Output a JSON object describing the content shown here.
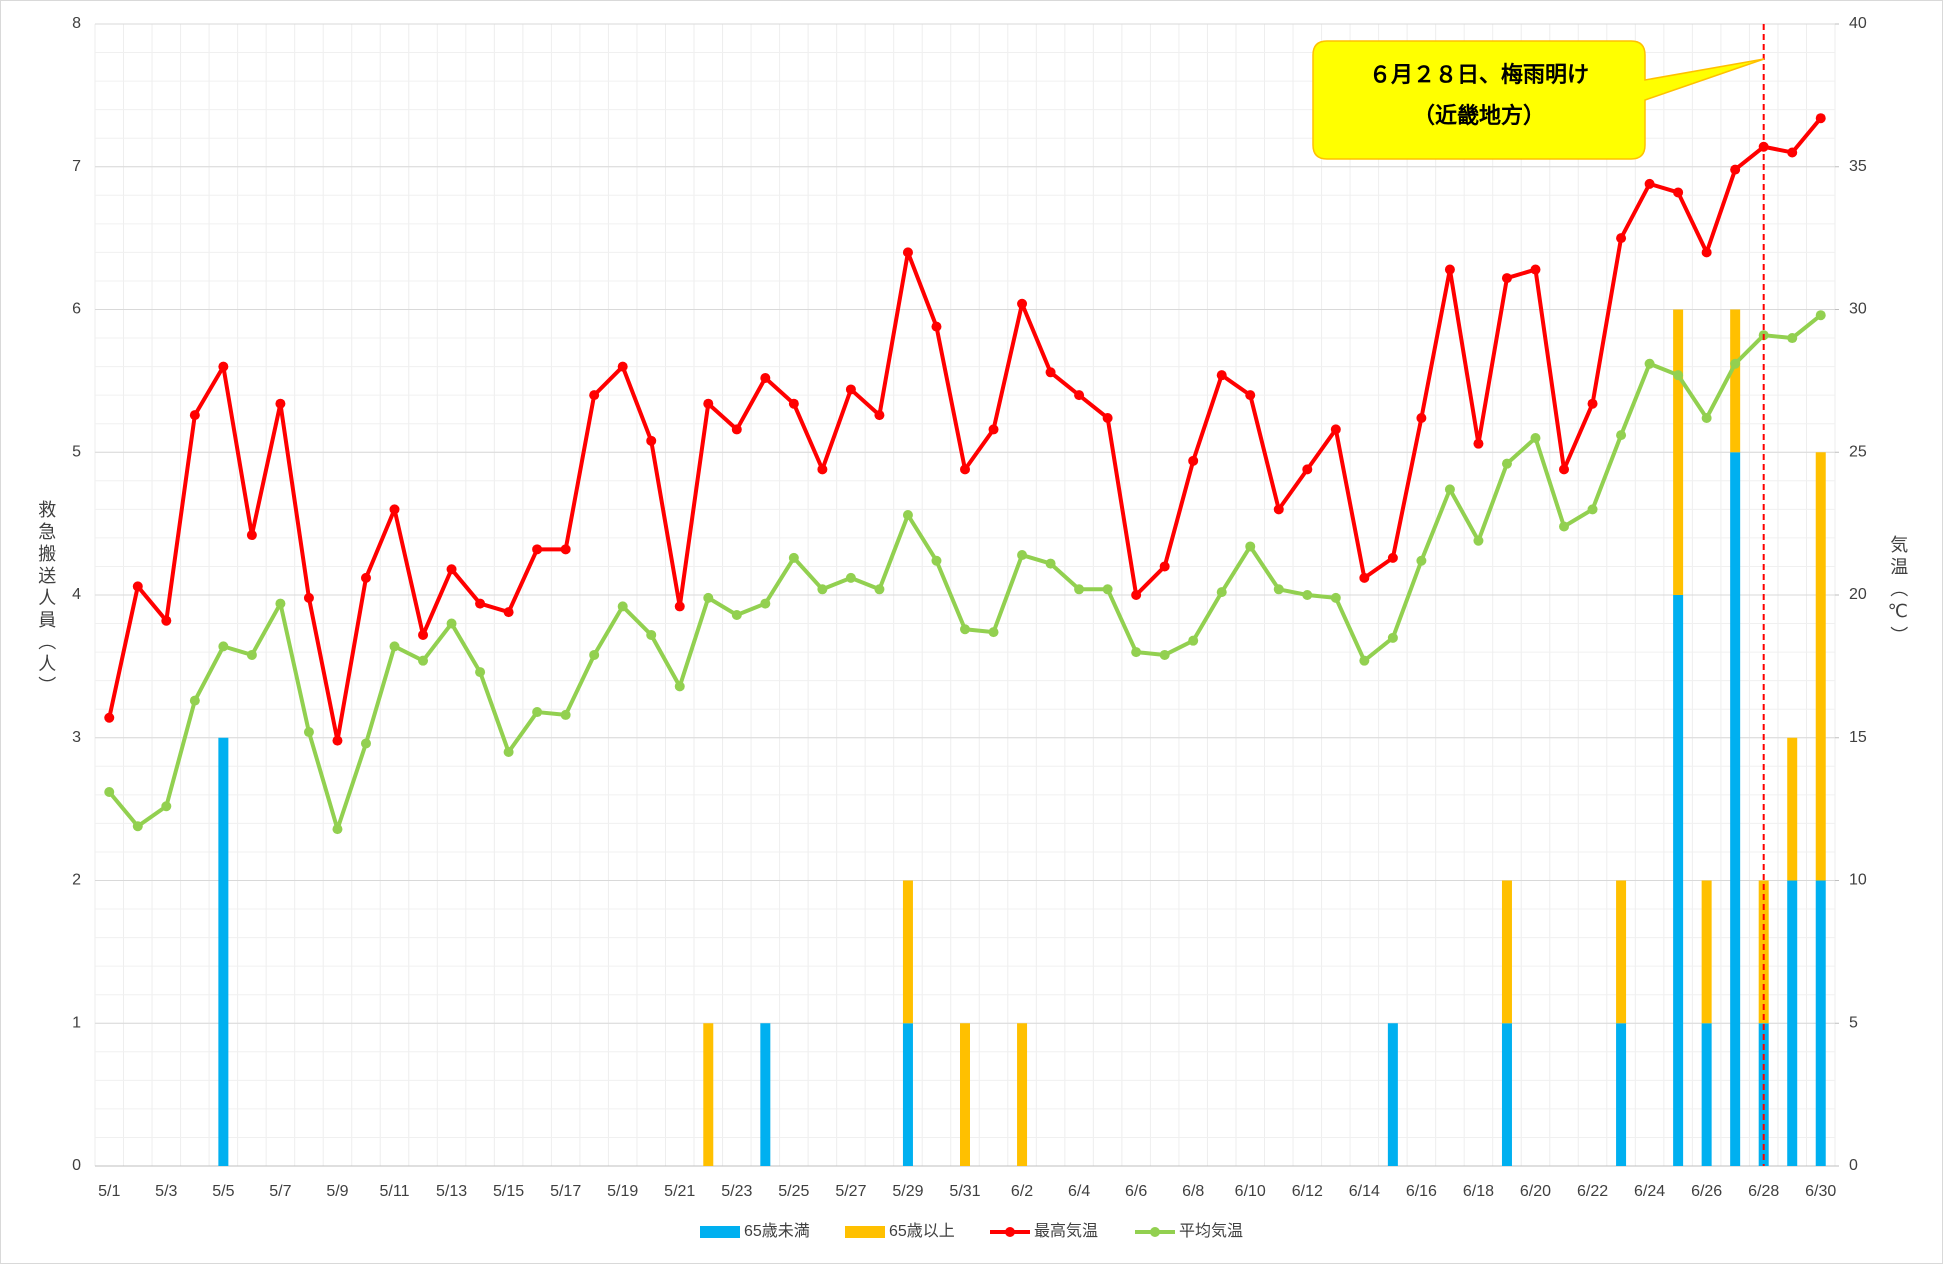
{
  "chart_data": {
    "type": "combo",
    "y_label": "救急搬送人員（人）",
    "y2_label": "気温（℃）",
    "annotation": [
      "６月２８日、梅雨明け",
      "（近畿地方）"
    ],
    "categories": [
      "5/1",
      null,
      "5/3",
      null,
      "5/5",
      null,
      "5/7",
      null,
      "5/9",
      null,
      "5/11",
      null,
      "5/13",
      null,
      "5/15",
      null,
      "5/17",
      null,
      "5/19",
      null,
      "5/21",
      null,
      "5/23",
      null,
      "5/25",
      null,
      "5/27",
      null,
      "5/29",
      null,
      "5/31",
      null,
      "6/2",
      null,
      "6/4",
      null,
      "6/6",
      null,
      "6/8",
      null,
      "6/10",
      null,
      "6/12",
      null,
      "6/14",
      null,
      "6/16",
      null,
      "6/18",
      null,
      "6/20",
      null,
      "6/22",
      null,
      "6/24",
      null,
      "6/26",
      null,
      "6/28",
      null,
      "6/30"
    ],
    "series": [
      {
        "name": "65歳未満",
        "type": "bar",
        "color": "#00b0f0",
        "values": [
          0,
          0,
          0,
          0,
          3,
          0,
          0,
          0,
          0,
          0,
          0,
          0,
          0,
          0,
          0,
          0,
          0,
          0,
          0,
          0,
          0,
          0,
          0,
          1,
          0,
          0,
          0,
          0,
          1,
          0,
          0,
          0,
          0,
          0,
          0,
          0,
          0,
          0,
          0,
          0,
          0,
          0,
          0,
          0,
          0,
          1,
          0,
          0,
          0,
          1,
          0,
          0,
          0,
          1,
          0,
          4,
          1,
          5,
          1,
          2,
          2
        ]
      },
      {
        "name": "65歳以上",
        "type": "bar",
        "color": "#ffc000",
        "values": [
          0,
          0,
          0,
          0,
          0,
          0,
          0,
          0,
          0,
          0,
          0,
          0,
          0,
          0,
          0,
          0,
          0,
          0,
          0,
          0,
          0,
          1,
          0,
          0,
          0,
          0,
          0,
          0,
          1,
          0,
          1,
          0,
          1,
          0,
          0,
          0,
          0,
          0,
          0,
          0,
          0,
          0,
          0,
          0,
          0,
          0,
          0,
          0,
          0,
          1,
          0,
          0,
          0,
          1,
          0,
          2,
          1,
          1,
          1,
          1,
          3
        ]
      },
      {
        "name": "最高気温",
        "type": "line",
        "axis": "y2",
        "color": "#ff0000",
        "values": [
          15.7,
          20.3,
          19.1,
          26.3,
          28.0,
          22.1,
          26.7,
          19.9,
          14.9,
          20.6,
          23.0,
          18.6,
          20.9,
          19.7,
          19.4,
          21.6,
          21.6,
          27.0,
          28.0,
          25.4,
          19.6,
          26.7,
          25.8,
          27.6,
          26.7,
          24.4,
          27.2,
          26.3,
          32.0,
          29.4,
          24.4,
          25.8,
          30.2,
          27.8,
          27.0,
          26.2,
          20.0,
          21.0,
          24.7,
          27.7,
          27.0,
          23.0,
          24.4,
          25.8,
          20.6,
          21.3,
          26.2,
          31.4,
          25.3,
          31.1,
          31.4,
          24.4,
          26.7,
          32.5,
          34.4,
          34.1,
          32.0,
          34.9,
          35.7,
          35.5,
          36.7
        ]
      },
      {
        "name": "平均気温",
        "type": "line",
        "axis": "y2",
        "color": "#92d050",
        "values": [
          13.1,
          11.9,
          12.6,
          16.3,
          18.2,
          17.9,
          19.7,
          15.2,
          11.8,
          14.8,
          18.2,
          17.7,
          19.0,
          17.3,
          14.5,
          15.9,
          15.8,
          17.9,
          19.6,
          18.6,
          16.8,
          19.9,
          19.3,
          19.7,
          21.3,
          20.2,
          20.6,
          20.2,
          22.8,
          21.2,
          18.8,
          18.7,
          21.4,
          21.1,
          20.2,
          20.2,
          18.0,
          17.9,
          18.4,
          20.1,
          21.7,
          20.2,
          20.0,
          19.9,
          17.7,
          18.5,
          21.2,
          23.7,
          21.9,
          24.6,
          25.5,
          22.4,
          23.0,
          25.6,
          28.1,
          27.7,
          26.2,
          28.1,
          29.1,
          29.0,
          29.8
        ]
      }
    ],
    "ylim": [
      0,
      8
    ],
    "yticks": [
      0,
      1,
      2,
      3,
      4,
      5,
      6,
      7,
      8
    ],
    "y2lim": [
      0,
      40
    ],
    "y2ticks": [
      0,
      5,
      10,
      15,
      20,
      25,
      30,
      35,
      40
    ],
    "grid": true,
    "legend": "bottom"
  }
}
